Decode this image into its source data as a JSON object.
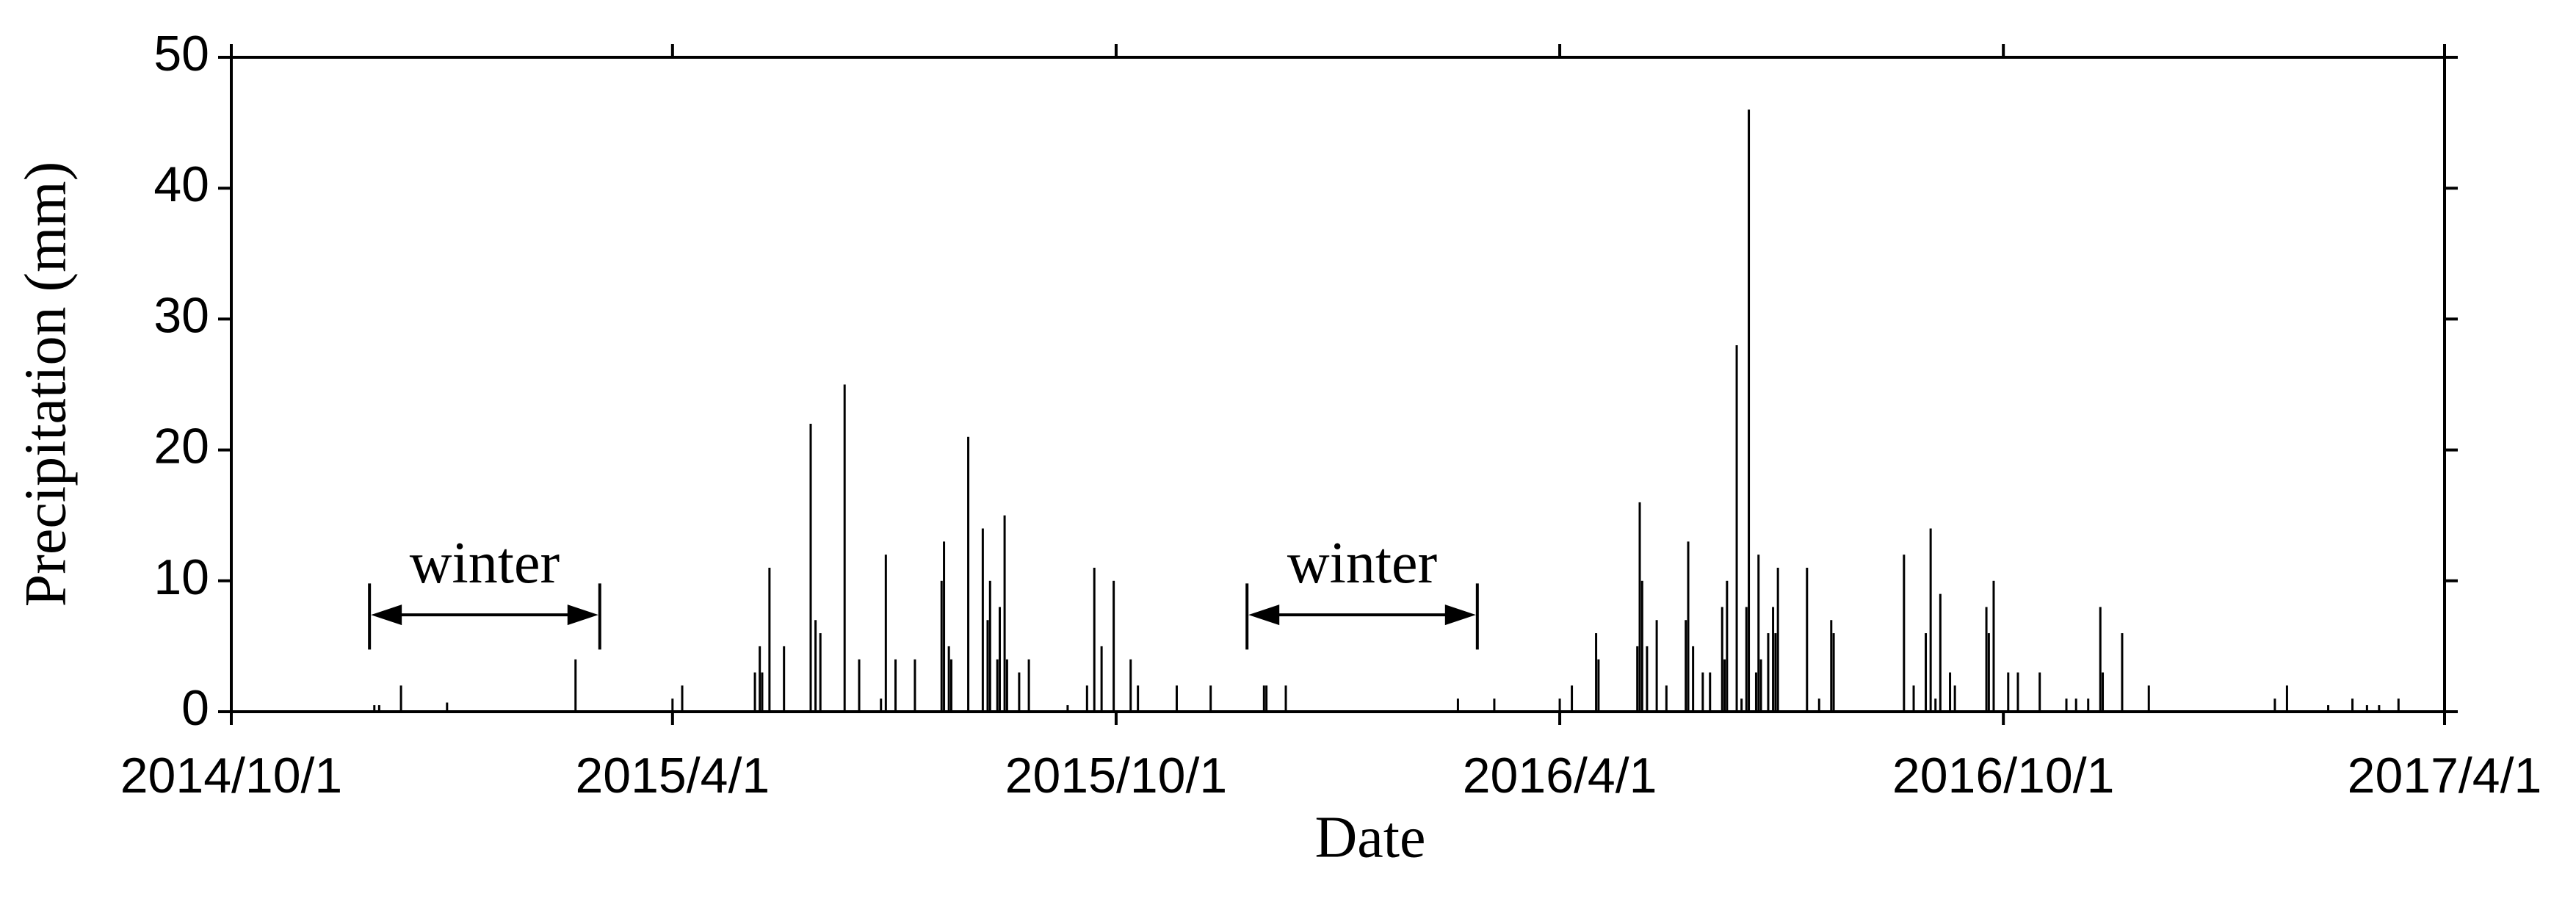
{
  "chart_data": {
    "type": "bar",
    "x_label": "Date",
    "y_label": "Precipitation (mm)",
    "color": "#000000",
    "xlim": [
      "2014/10/1",
      "2017/4/1"
    ],
    "xticks": [
      "2014/10/1",
      "2015/4/1",
      "2015/10/1",
      "2016/4/1",
      "2016/10/1",
      "2017/4/1"
    ],
    "ylim": [
      0,
      50
    ],
    "yticks": [
      0,
      10,
      20,
      30,
      40,
      50
    ],
    "annotations": [
      {
        "text": "winter",
        "start": "2014/11/27",
        "end": "2015/3/2"
      },
      {
        "text": "winter",
        "start": "2015/11/24",
        "end": "2016/2/27"
      }
    ],
    "x": [
      "2014/11/29",
      "2014/12/1",
      "2014/12/10",
      "2014/12/29",
      "2015/2/20",
      "2015/4/1",
      "2015/4/5",
      "2015/5/5",
      "2015/5/7",
      "2015/5/8",
      "2015/5/11",
      "2015/5/17",
      "2015/5/28",
      "2015/5/30",
      "2015/6/1",
      "2015/6/11",
      "2015/6/17",
      "2015/6/26",
      "2015/6/28",
      "2015/7/2",
      "2015/7/10",
      "2015/7/21",
      "2015/7/22",
      "2015/7/24",
      "2015/7/25",
      "2015/8/1",
      "2015/8/7",
      "2015/8/9",
      "2015/8/10",
      "2015/8/13",
      "2015/8/14",
      "2015/8/16",
      "2015/8/17",
      "2015/8/22",
      "2015/8/26",
      "2015/9/11",
      "2015/9/19",
      "2015/9/22",
      "2015/9/25",
      "2015/9/30",
      "2015/10/7",
      "2015/10/10",
      "2015/10/26",
      "2015/11/9",
      "2015/12/1",
      "2015/12/2",
      "2015/12/10",
      "2016/2/19",
      "2016/3/5",
      "2016/4/1",
      "2016/4/6",
      "2016/4/16",
      "2016/4/17",
      "2016/5/3",
      "2016/5/4",
      "2016/5/5",
      "2016/5/7",
      "2016/5/11",
      "2016/5/15",
      "2016/5/23",
      "2016/5/24",
      "2016/5/26",
      "2016/5/30",
      "2016/6/2",
      "2016/6/7",
      "2016/6/8",
      "2016/6/9",
      "2016/6/13",
      "2016/6/15",
      "2016/6/17",
      "2016/6/18",
      "2016/6/21",
      "2016/6/22",
      "2016/6/23",
      "2016/6/26",
      "2016/6/28",
      "2016/6/29",
      "2016/6/30",
      "2016/7/12",
      "2016/7/17",
      "2016/7/22",
      "2016/7/23",
      "2016/8/21",
      "2016/8/25",
      "2016/8/30",
      "2016/9/1",
      "2016/9/3",
      "2016/9/5",
      "2016/9/9",
      "2016/9/11",
      "2016/9/24",
      "2016/9/25",
      "2016/9/27",
      "2016/10/3",
      "2016/10/7",
      "2016/10/16",
      "2016/10/27",
      "2016/10/31",
      "2016/11/5",
      "2016/11/10",
      "2016/11/11",
      "2016/11/19",
      "2016/11/30",
      "2017/1/21",
      "2017/1/26",
      "2017/2/12",
      "2017/2/22",
      "2017/2/28",
      "2017/3/5",
      "2017/3/13"
    ],
    "values": [
      0.5,
      0.5,
      2,
      0.7,
      4,
      1,
      2,
      3,
      5,
      3,
      11,
      5,
      22,
      7,
      6,
      25,
      4,
      1,
      12,
      4,
      4,
      10,
      13,
      5,
      4,
      21,
      14,
      7,
      10,
      4,
      8,
      15,
      4,
      3,
      4,
      0.5,
      2,
      11,
      5,
      10,
      4,
      2,
      2,
      2,
      2,
      2,
      2,
      1,
      1,
      1,
      2,
      6,
      4,
      5,
      16,
      10,
      5,
      7,
      2,
      7,
      13,
      5,
      3,
      3,
      8,
      4,
      10,
      28,
      1,
      8,
      46,
      3,
      12,
      4,
      6,
      8,
      6,
      11,
      11,
      1,
      7,
      6,
      12,
      2,
      6,
      14,
      1,
      9,
      3,
      2,
      8,
      6,
      10,
      3,
      3,
      3,
      1,
      1,
      1,
      8,
      3,
      6,
      2,
      1,
      2,
      0.5,
      1,
      0.5,
      0.5,
      1
    ]
  }
}
